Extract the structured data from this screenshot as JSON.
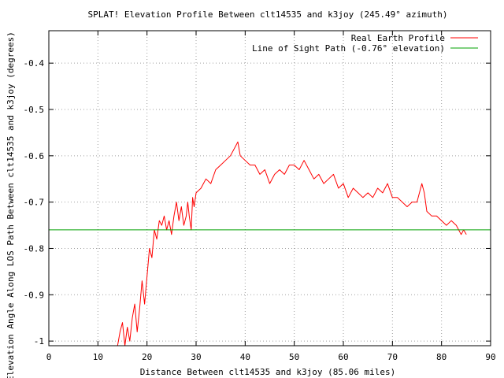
{
  "chart_data": {
    "type": "line",
    "title": "SPLAT! Elevation Profile Between clt14535 and k3joy (245.49° azimuth)",
    "xlabel": "Distance Between clt14535 and k3joy (85.06 miles)",
    "ylabel": "Elevation Angle Along LOS Path Between clt14535 and k3joy (degrees)",
    "xlim": [
      0,
      90
    ],
    "ylim": [
      -1.01,
      -0.33
    ],
    "xticks": [
      0,
      10,
      20,
      30,
      40,
      50,
      60,
      70,
      80,
      90
    ],
    "yticks": [
      -1,
      -0.9,
      -0.8,
      -0.7,
      -0.6,
      -0.5,
      -0.4
    ],
    "xtick_labels": [
      "0",
      "10",
      "20",
      "30",
      "40",
      "50",
      "60",
      "70",
      "80",
      "90"
    ],
    "ytick_labels": [
      "-1",
      "-0.9",
      "-0.8",
      "-0.7",
      "-0.6",
      "-0.5",
      "-0.4"
    ],
    "grid": true,
    "legend": "top-right",
    "series": [
      {
        "name": "Real Earth Profile",
        "color": "#ff0000",
        "x": [
          14,
          14.5,
          15,
          15.5,
          16,
          16.5,
          17,
          17.5,
          18,
          18.5,
          19,
          19.5,
          20,
          20.5,
          21,
          21.5,
          22,
          22.5,
          23,
          23.5,
          24,
          24.5,
          25,
          25.5,
          26,
          26.5,
          27,
          27.5,
          28,
          28.3,
          28.6,
          29,
          29.3,
          29.6,
          30,
          31,
          32,
          33,
          34,
          35,
          36,
          37,
          38,
          38.5,
          39,
          40,
          41,
          42,
          43,
          44,
          45,
          46,
          47,
          48,
          49,
          50,
          51,
          52,
          53,
          54,
          55,
          56,
          57,
          58,
          59,
          60,
          61,
          62,
          63,
          64,
          65,
          66,
          67,
          68,
          69,
          70,
          71,
          72,
          73,
          74,
          75,
          76,
          76.5,
          77,
          78,
          79,
          80,
          81,
          82,
          83,
          84,
          84.5,
          85.06
        ],
        "y": [
          -1.01,
          -0.98,
          -0.96,
          -1.01,
          -0.97,
          -1.0,
          -0.95,
          -0.92,
          -0.98,
          -0.93,
          -0.87,
          -0.92,
          -0.86,
          -0.8,
          -0.82,
          -0.76,
          -0.78,
          -0.74,
          -0.75,
          -0.73,
          -0.76,
          -0.74,
          -0.77,
          -0.73,
          -0.7,
          -0.74,
          -0.71,
          -0.75,
          -0.73,
          -0.7,
          -0.73,
          -0.76,
          -0.69,
          -0.71,
          -0.68,
          -0.67,
          -0.65,
          -0.66,
          -0.63,
          -0.62,
          -0.61,
          -0.6,
          -0.58,
          -0.57,
          -0.6,
          -0.61,
          -0.62,
          -0.62,
          -0.64,
          -0.63,
          -0.66,
          -0.64,
          -0.63,
          -0.64,
          -0.62,
          -0.62,
          -0.63,
          -0.61,
          -0.63,
          -0.65,
          -0.64,
          -0.66,
          -0.65,
          -0.64,
          -0.67,
          -0.66,
          -0.69,
          -0.67,
          -0.68,
          -0.69,
          -0.68,
          -0.69,
          -0.67,
          -0.68,
          -0.66,
          -0.69,
          -0.69,
          -0.7,
          -0.71,
          -0.7,
          -0.7,
          -0.66,
          -0.68,
          -0.72,
          -0.73,
          -0.73,
          -0.74,
          -0.75,
          -0.74,
          -0.75,
          -0.77,
          -0.76,
          -0.77
        ]
      },
      {
        "name": "Line of Sight Path (-0.76° elevation)",
        "color": "#00a000",
        "x": [
          0,
          90
        ],
        "y": [
          -0.76,
          -0.76
        ]
      }
    ]
  }
}
